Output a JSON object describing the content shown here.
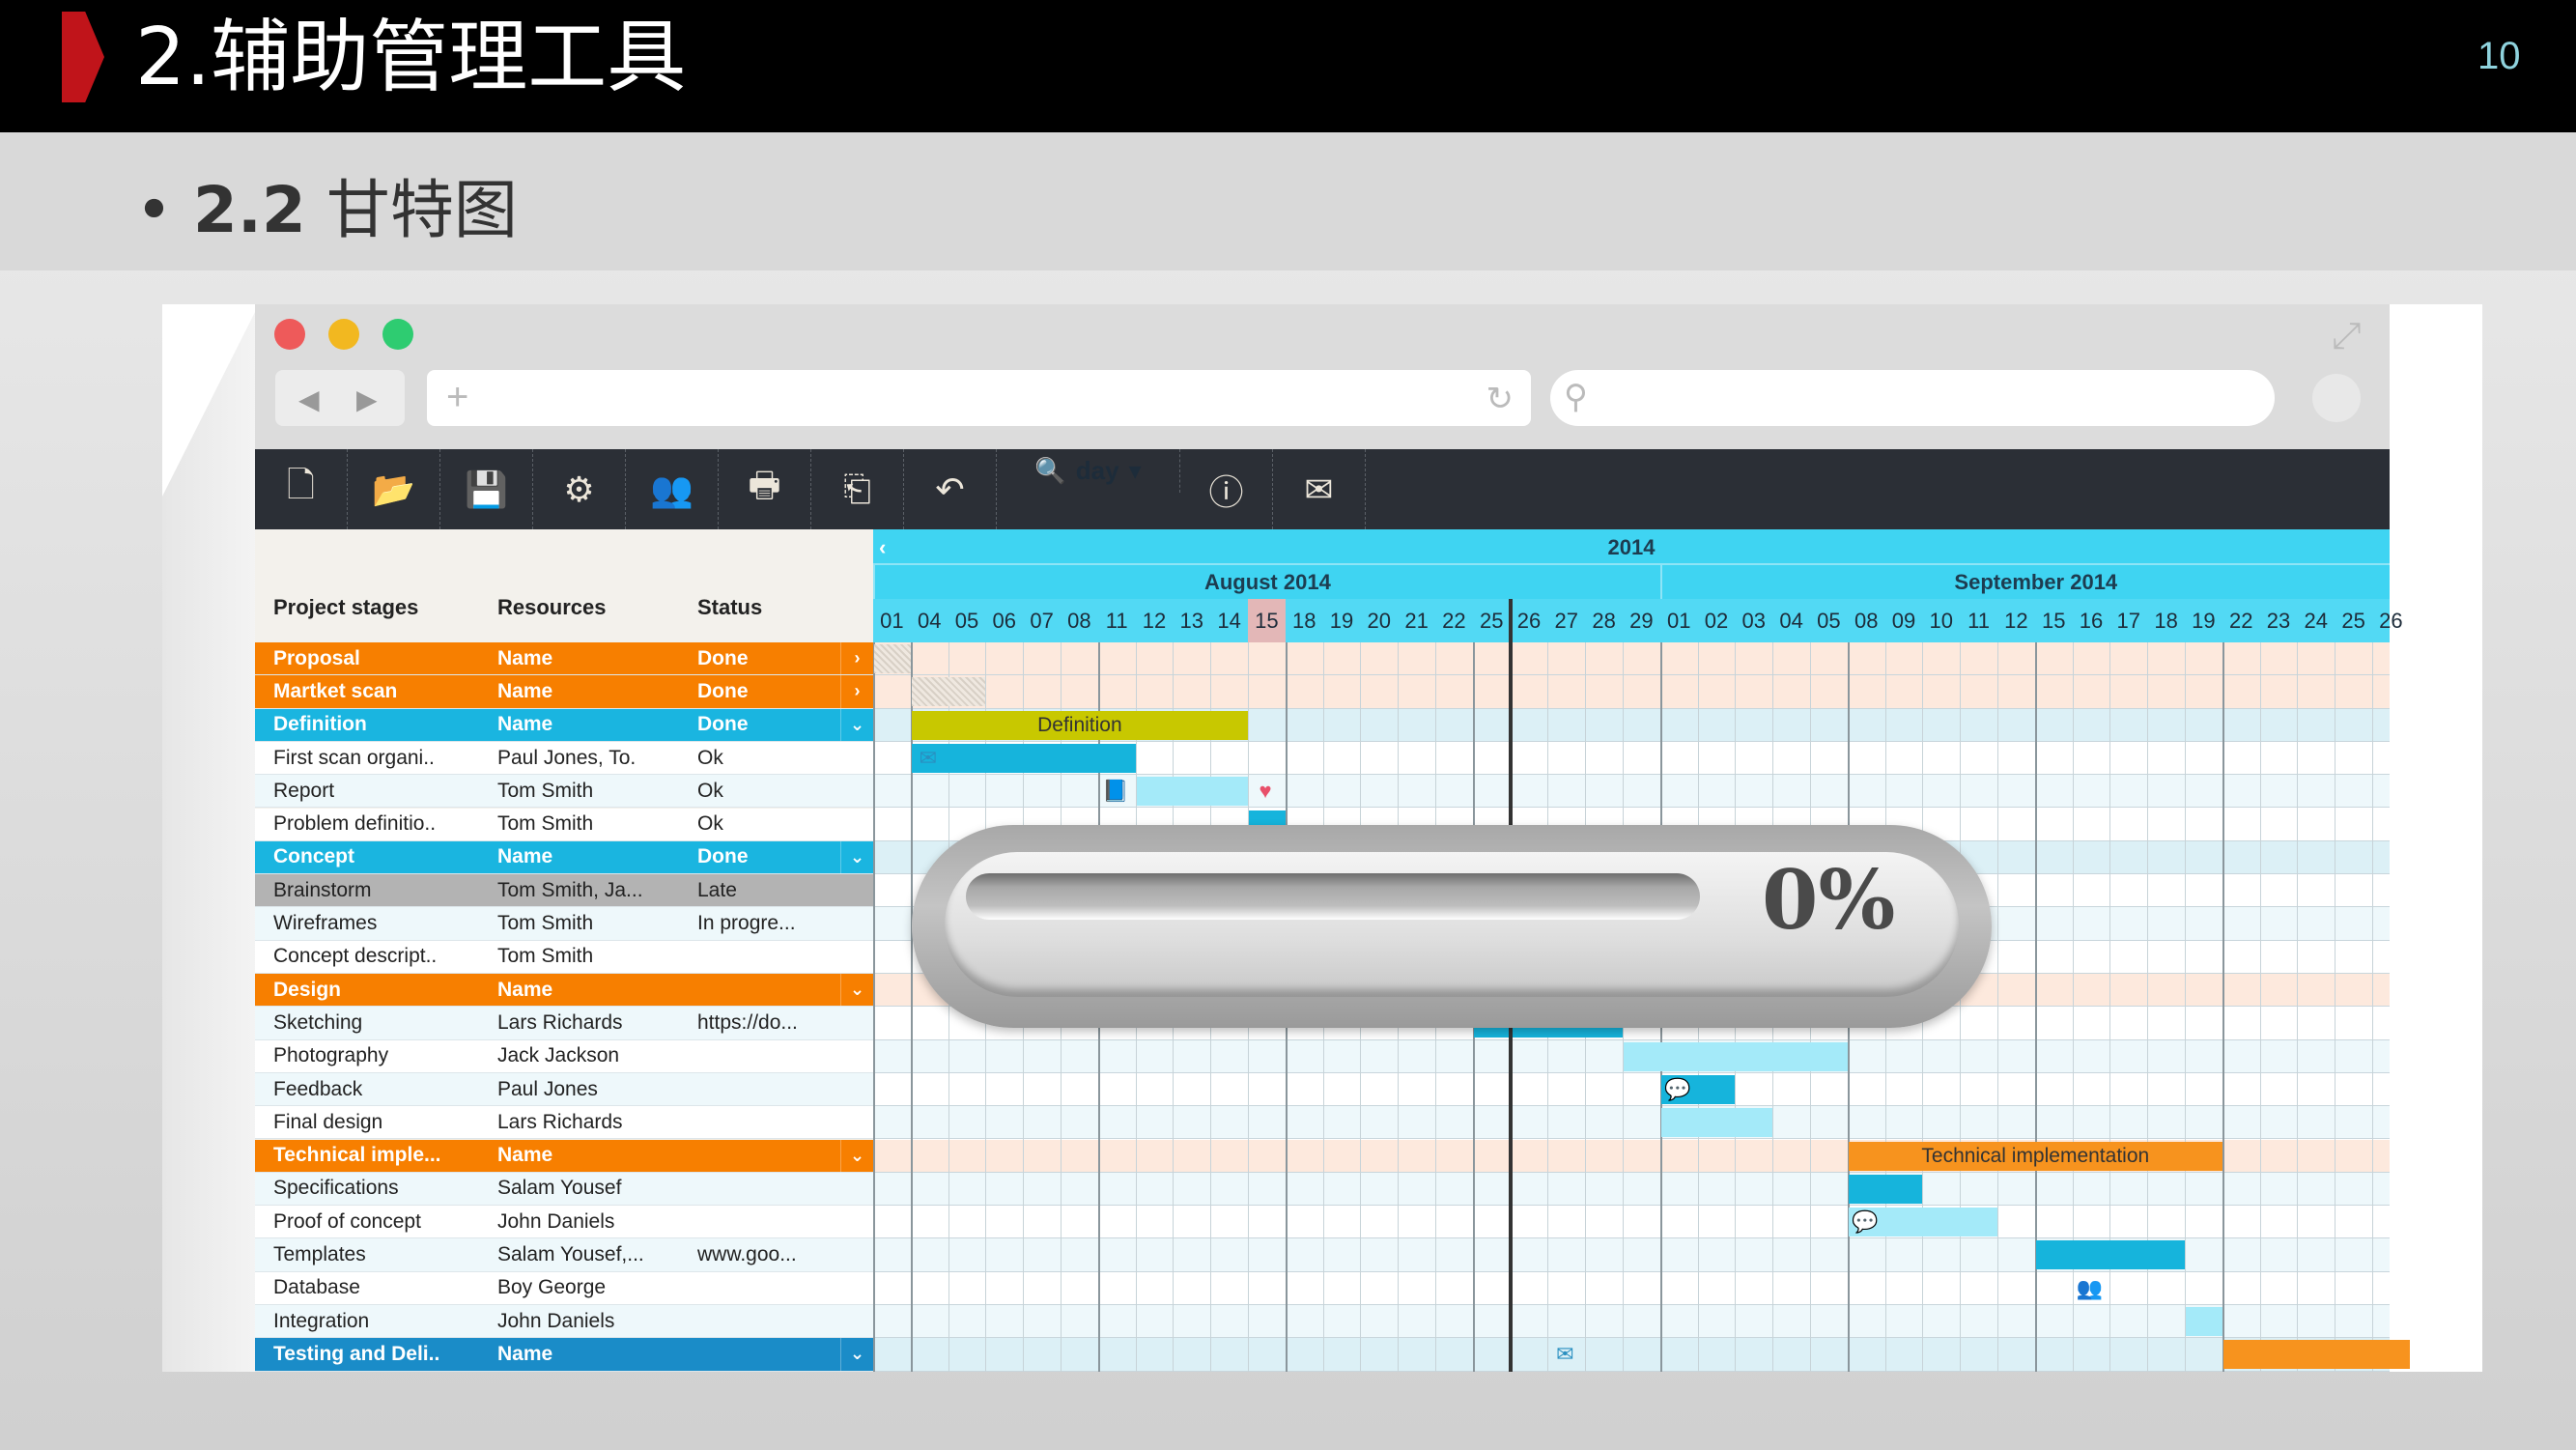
{
  "slide": {
    "title": "2.辅助管理工具",
    "page_number": "10",
    "bullet": "•",
    "subtitle_num": "2.2",
    "subtitle_text": "甘特图"
  },
  "colors": {
    "orange": "#f77f00",
    "cyan": "#1ab5e0",
    "dark_blue": "#1a8cc8",
    "olive": "#c8c800",
    "bar_blue": "#16b4dc",
    "bar_light": "#a4eaf9",
    "bar_orange": "#f7931e",
    "peach": "#fde9dd",
    "blue_bg": "#dcf0f6"
  },
  "toolbar": {
    "items": [
      {
        "icon": "new-file-icon",
        "glyph": "🗋"
      },
      {
        "icon": "open-folder-icon",
        "glyph": "📂"
      },
      {
        "icon": "save-icon",
        "glyph": "💾"
      },
      {
        "icon": "settings-icon",
        "glyph": "⚙"
      },
      {
        "icon": "users-icon",
        "glyph": "👥"
      },
      {
        "icon": "print-icon",
        "glyph": "🖶"
      },
      {
        "icon": "export-icon",
        "glyph": "⎗"
      },
      {
        "icon": "undo-icon",
        "glyph": "↶"
      }
    ],
    "zoom_label": "day",
    "zoom_icon": "🔍",
    "info_glyph": "ⓘ",
    "mail_glyph": "✉"
  },
  "browser": {
    "back": "◀",
    "forward": "▶",
    "new_tab": "+",
    "reload": "↻",
    "search_icon": "⚲",
    "expand": "⤢"
  },
  "table": {
    "headers": [
      "Project stages",
      "Resources",
      "Status"
    ],
    "rows": [
      {
        "type": "orange",
        "stage": "Proposal",
        "resource": "Name",
        "status": "Done",
        "arrow": "›"
      },
      {
        "type": "orange",
        "stage": "Martket scan",
        "resource": "Name",
        "status": "Done",
        "arrow": "›"
      },
      {
        "type": "cyan",
        "stage": "Definition",
        "resource": "Name",
        "status": "Done",
        "arrow": "⌄"
      },
      {
        "type": "child",
        "stage": "First scan organi..",
        "resource": "Paul Jones, To.",
        "status": "Ok"
      },
      {
        "type": "child",
        "stage": "Report",
        "resource": "Tom Smith",
        "status": "Ok"
      },
      {
        "type": "child",
        "stage": "Problem definitio..",
        "resource": "Tom Smith",
        "status": "Ok"
      },
      {
        "type": "cyan",
        "stage": "Concept",
        "resource": "Name",
        "status": "Done",
        "arrow": "⌄"
      },
      {
        "type": "late",
        "stage": "Brainstorm",
        "resource": "Tom Smith, Ja...",
        "status": "Late"
      },
      {
        "type": "child",
        "stage": "Wireframes",
        "resource": "Tom Smith",
        "status": "In progre..."
      },
      {
        "type": "child",
        "stage": "Concept descript..",
        "resource": "Tom Smith",
        "status": ""
      },
      {
        "type": "orange",
        "stage": "Design",
        "resource": "Name",
        "status": "",
        "arrow": "⌄"
      },
      {
        "type": "child",
        "stage": "Sketching",
        "resource": "Lars Richards",
        "status": "https://do..."
      },
      {
        "type": "child",
        "stage": "Photography",
        "resource": "Jack Jackson",
        "status": ""
      },
      {
        "type": "child",
        "stage": "Feedback",
        "resource": "Paul Jones",
        "status": ""
      },
      {
        "type": "child",
        "stage": "Final design",
        "resource": "Lars Richards",
        "status": ""
      },
      {
        "type": "orange",
        "stage": "Technical imple...",
        "resource": "Name",
        "status": "",
        "arrow": "⌄"
      },
      {
        "type": "child",
        "stage": "Specifications",
        "resource": "Salam Yousef",
        "status": ""
      },
      {
        "type": "child",
        "stage": "Proof of concept",
        "resource": "John Daniels",
        "status": ""
      },
      {
        "type": "child",
        "stage": "Templates",
        "resource": "Salam Yousef,...",
        "status": "www.goo..."
      },
      {
        "type": "child",
        "stage": "Database",
        "resource": "Boy George",
        "status": ""
      },
      {
        "type": "child",
        "stage": "Integration",
        "resource": "John Daniels",
        "status": ""
      },
      {
        "type": "dark",
        "stage": "Testing and Deli..",
        "resource": "Name",
        "status": "",
        "arrow": "⌄"
      }
    ]
  },
  "timeline": {
    "year": "2014",
    "back_glyph": "‹",
    "months": [
      {
        "key": "08",
        "label": "August 2014",
        "days": [
          "01",
          "04",
          "05",
          "06",
          "07",
          "08",
          "11",
          "12",
          "13",
          "14",
          "15",
          "18",
          "19",
          "20",
          "21",
          "22",
          "25",
          "26",
          "27",
          "28",
          "29"
        ]
      },
      {
        "key": "09",
        "label": "September 2014",
        "days": [
          "01",
          "02",
          "03",
          "04",
          "05",
          "08",
          "09",
          "10",
          "11",
          "12",
          "15",
          "16",
          "17",
          "18",
          "19",
          "22",
          "23",
          "24",
          "25",
          "26"
        ]
      }
    ],
    "highlighted_day": "08-15",
    "today_line_date": "08-26"
  },
  "bars": [
    {
      "row": 0,
      "start": "08-01",
      "end": "08-01",
      "style": "hatch"
    },
    {
      "row": 1,
      "start": "08-04",
      "end": "08-05",
      "style": "hatch"
    },
    {
      "row": 2,
      "start": "08-04",
      "end": "08-14",
      "style": "olive",
      "label": "Definition"
    },
    {
      "row": 3,
      "start": "08-04",
      "end": "08-11",
      "style": "blue"
    },
    {
      "row": 4,
      "start": "08-12",
      "end": "08-14",
      "style": "light"
    },
    {
      "row": 5,
      "start": "08-15",
      "end": "08-15",
      "style": "blue"
    },
    {
      "row": 11,
      "start": "08-25",
      "end": "08-28",
      "style": "blue"
    },
    {
      "row": 12,
      "start": "08-29",
      "end": "09-05",
      "style": "light"
    },
    {
      "row": 13,
      "start": "09-01",
      "end": "09-02",
      "style": "blue"
    },
    {
      "row": 14,
      "start": "09-01",
      "end": "09-03",
      "style": "light"
    },
    {
      "row": 15,
      "start": "09-08",
      "end": "09-19",
      "style": "orange",
      "label": "Technical implementation"
    },
    {
      "row": 16,
      "start": "09-08",
      "end": "09-09",
      "style": "blue"
    },
    {
      "row": 17,
      "start": "09-08",
      "end": "09-11",
      "style": "light"
    },
    {
      "row": 18,
      "start": "09-15",
      "end": "09-18",
      "style": "blue"
    },
    {
      "row": 20,
      "start": "09-19",
      "end": "09-19",
      "style": "light"
    },
    {
      "row": 21,
      "start": "09-22",
      "end": "09-26",
      "style": "orange"
    }
  ],
  "markers": [
    {
      "row": 3,
      "date": "08-04",
      "icon": "envelope-icon",
      "glyph": "✉"
    },
    {
      "row": 4,
      "date": "08-11",
      "icon": "book-icon",
      "glyph": "📘"
    },
    {
      "row": 4,
      "date": "08-15",
      "icon": "heart-icon",
      "glyph": "♥"
    },
    {
      "row": 13,
      "date": "09-01",
      "icon": "comment-icon",
      "glyph": "💬"
    },
    {
      "row": 17,
      "date": "09-08",
      "icon": "comment-icon",
      "glyph": "💬"
    },
    {
      "row": 19,
      "date": "09-16",
      "icon": "people-icon",
      "glyph": "👥"
    },
    {
      "row": 21,
      "date": "08-27",
      "icon": "envelope-icon",
      "glyph": "✉"
    }
  ],
  "progress": {
    "label": "0%",
    "value": 0
  }
}
